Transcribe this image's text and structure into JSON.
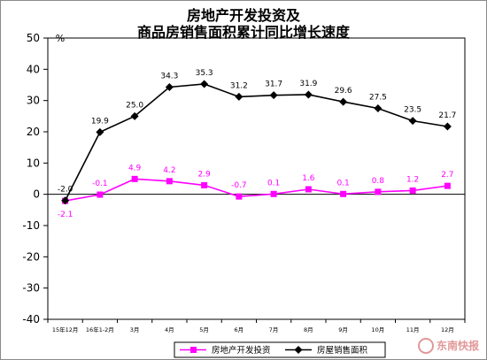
{
  "chart_data": {
    "type": "line",
    "title": "房地产开发投资及",
    "subtitle": "商品房销售面积累计同比增长速度",
    "y_unit": "%",
    "ylim": [
      -40,
      50
    ],
    "yticks": [
      -40,
      -30,
      -20,
      -10,
      0,
      10,
      20,
      30,
      40,
      50
    ],
    "grid": false,
    "legend_position": "bottom",
    "categories": [
      "15年12月",
      "16年1-2月",
      "3月",
      "4月",
      "5月",
      "6月",
      "7月",
      "8月",
      "9月",
      "10月",
      "11月",
      "12月"
    ],
    "series": [
      {
        "name": "房地产开发投资",
        "color": "#ff00ff",
        "marker": "square",
        "values": [
          -2.1,
          -0.1,
          4.9,
          4.2,
          2.9,
          -0.7,
          0.1,
          1.6,
          0.1,
          0.8,
          1.2,
          2.7
        ],
        "labels": [
          "-2.1",
          "-0.1",
          "4.9",
          "4.2",
          "2.9",
          "-0.7",
          "0.1",
          "1.6",
          "0.1",
          "0.8",
          "1.2",
          "2.7"
        ]
      },
      {
        "name": "房屋销售面积",
        "color": "#000000",
        "marker": "diamond",
        "values": [
          -2.0,
          19.9,
          25.0,
          34.3,
          35.3,
          31.2,
          31.7,
          31.9,
          29.6,
          27.5,
          23.5,
          21.7
        ],
        "labels": [
          "-2.0",
          "19.9",
          "25.0",
          "34.3",
          "35.3",
          "31.2",
          "31.7",
          "31.9",
          "29.6",
          "27.5",
          "23.5",
          "21.7"
        ]
      }
    ]
  },
  "watermark": "东南快报"
}
